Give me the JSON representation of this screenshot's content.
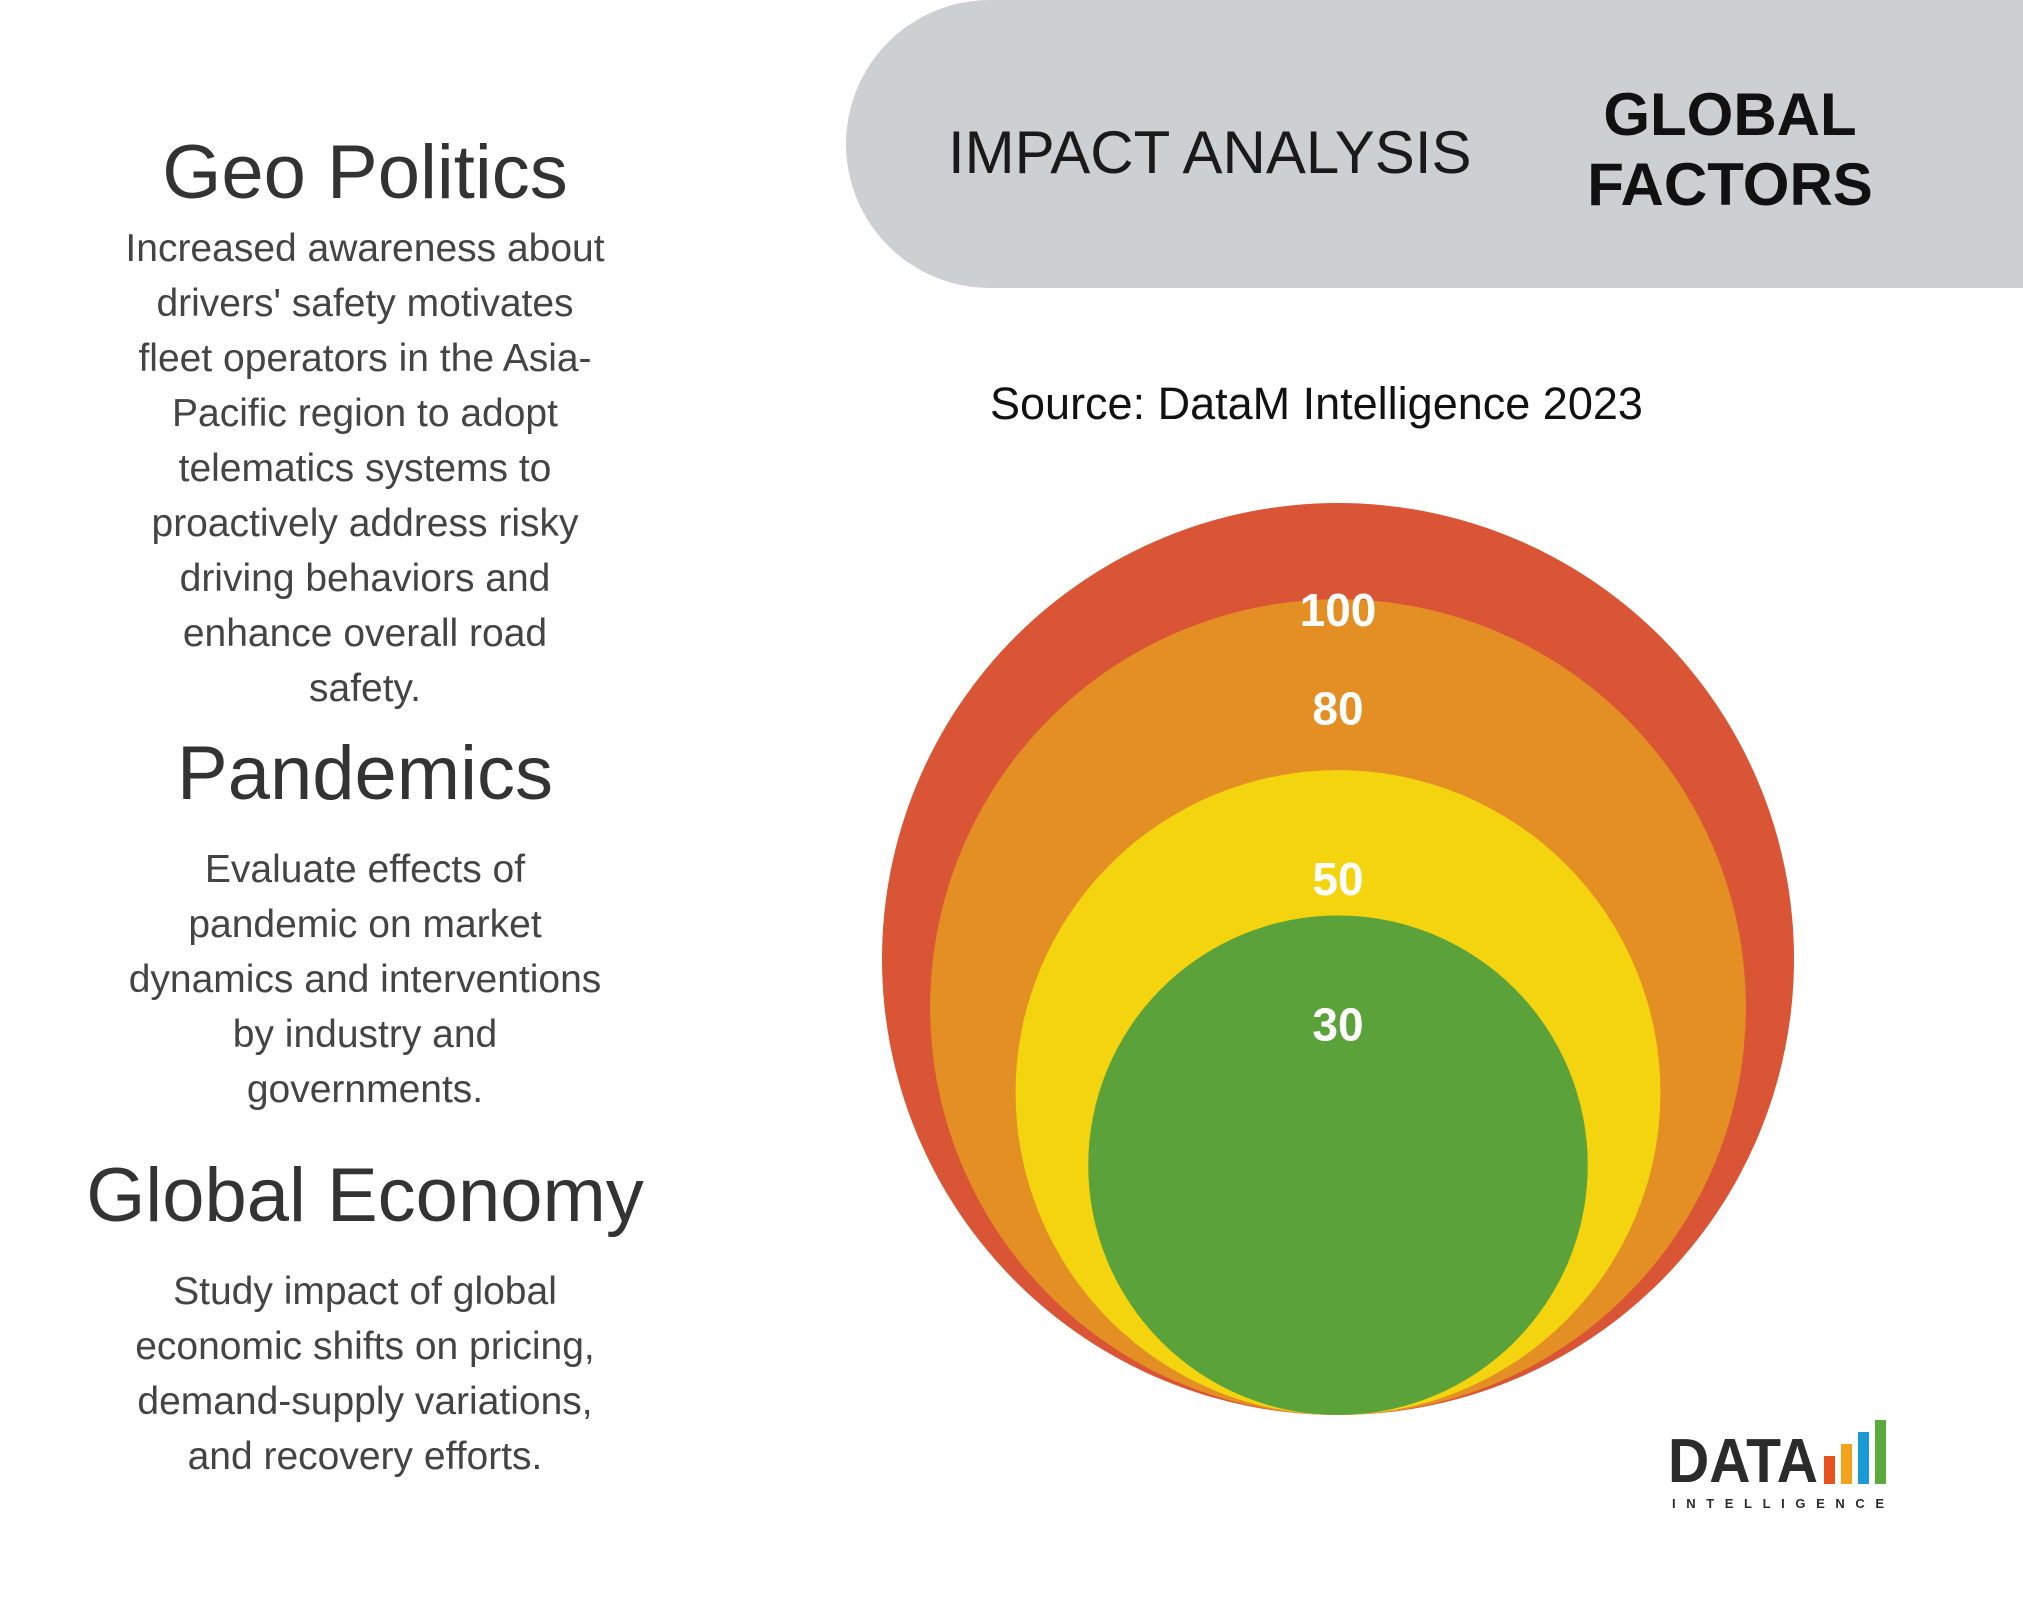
{
  "header": {
    "label": "IMPACT ANALYSIS",
    "strong_line1": "GLOBAL",
    "strong_line2": "FACTORS"
  },
  "source": "Source: DataM Intelligence 2023",
  "factors": [
    {
      "title": "Geo Politics",
      "description_lines": [
        "Increased awareness about",
        "drivers' safety motivates",
        "fleet operators in the Asia-",
        "Pacific region to adopt",
        "telematics systems to",
        "proactively address risky",
        "driving behaviors and",
        "enhance overall road",
        "safety."
      ]
    },
    {
      "title": "Pandemics",
      "description_lines": [
        "Evaluate effects of",
        "pandemic on market",
        "dynamics and interventions",
        "by industry and",
        "governments."
      ]
    },
    {
      "title": "Global Economy",
      "description_lines": [
        "Study impact of global",
        "economic shifts on pricing,",
        "demand-supply variations,",
        "and recovery efforts."
      ]
    }
  ],
  "chart_data": {
    "type": "nested-bubble",
    "title": "",
    "values": [
      100,
      80,
      50,
      30
    ],
    "labels": [
      "100",
      "80",
      "50",
      "30"
    ],
    "colors": [
      "#d95535",
      "#e48f24",
      "#f4d40f",
      "#5ba23a"
    ]
  },
  "logo": {
    "text": "DATA",
    "subtext": "INTELLIGENCE",
    "bar_colors": [
      "#e8531d",
      "#f2a31b",
      "#1b9ad6",
      "#5aaa3c"
    ]
  }
}
